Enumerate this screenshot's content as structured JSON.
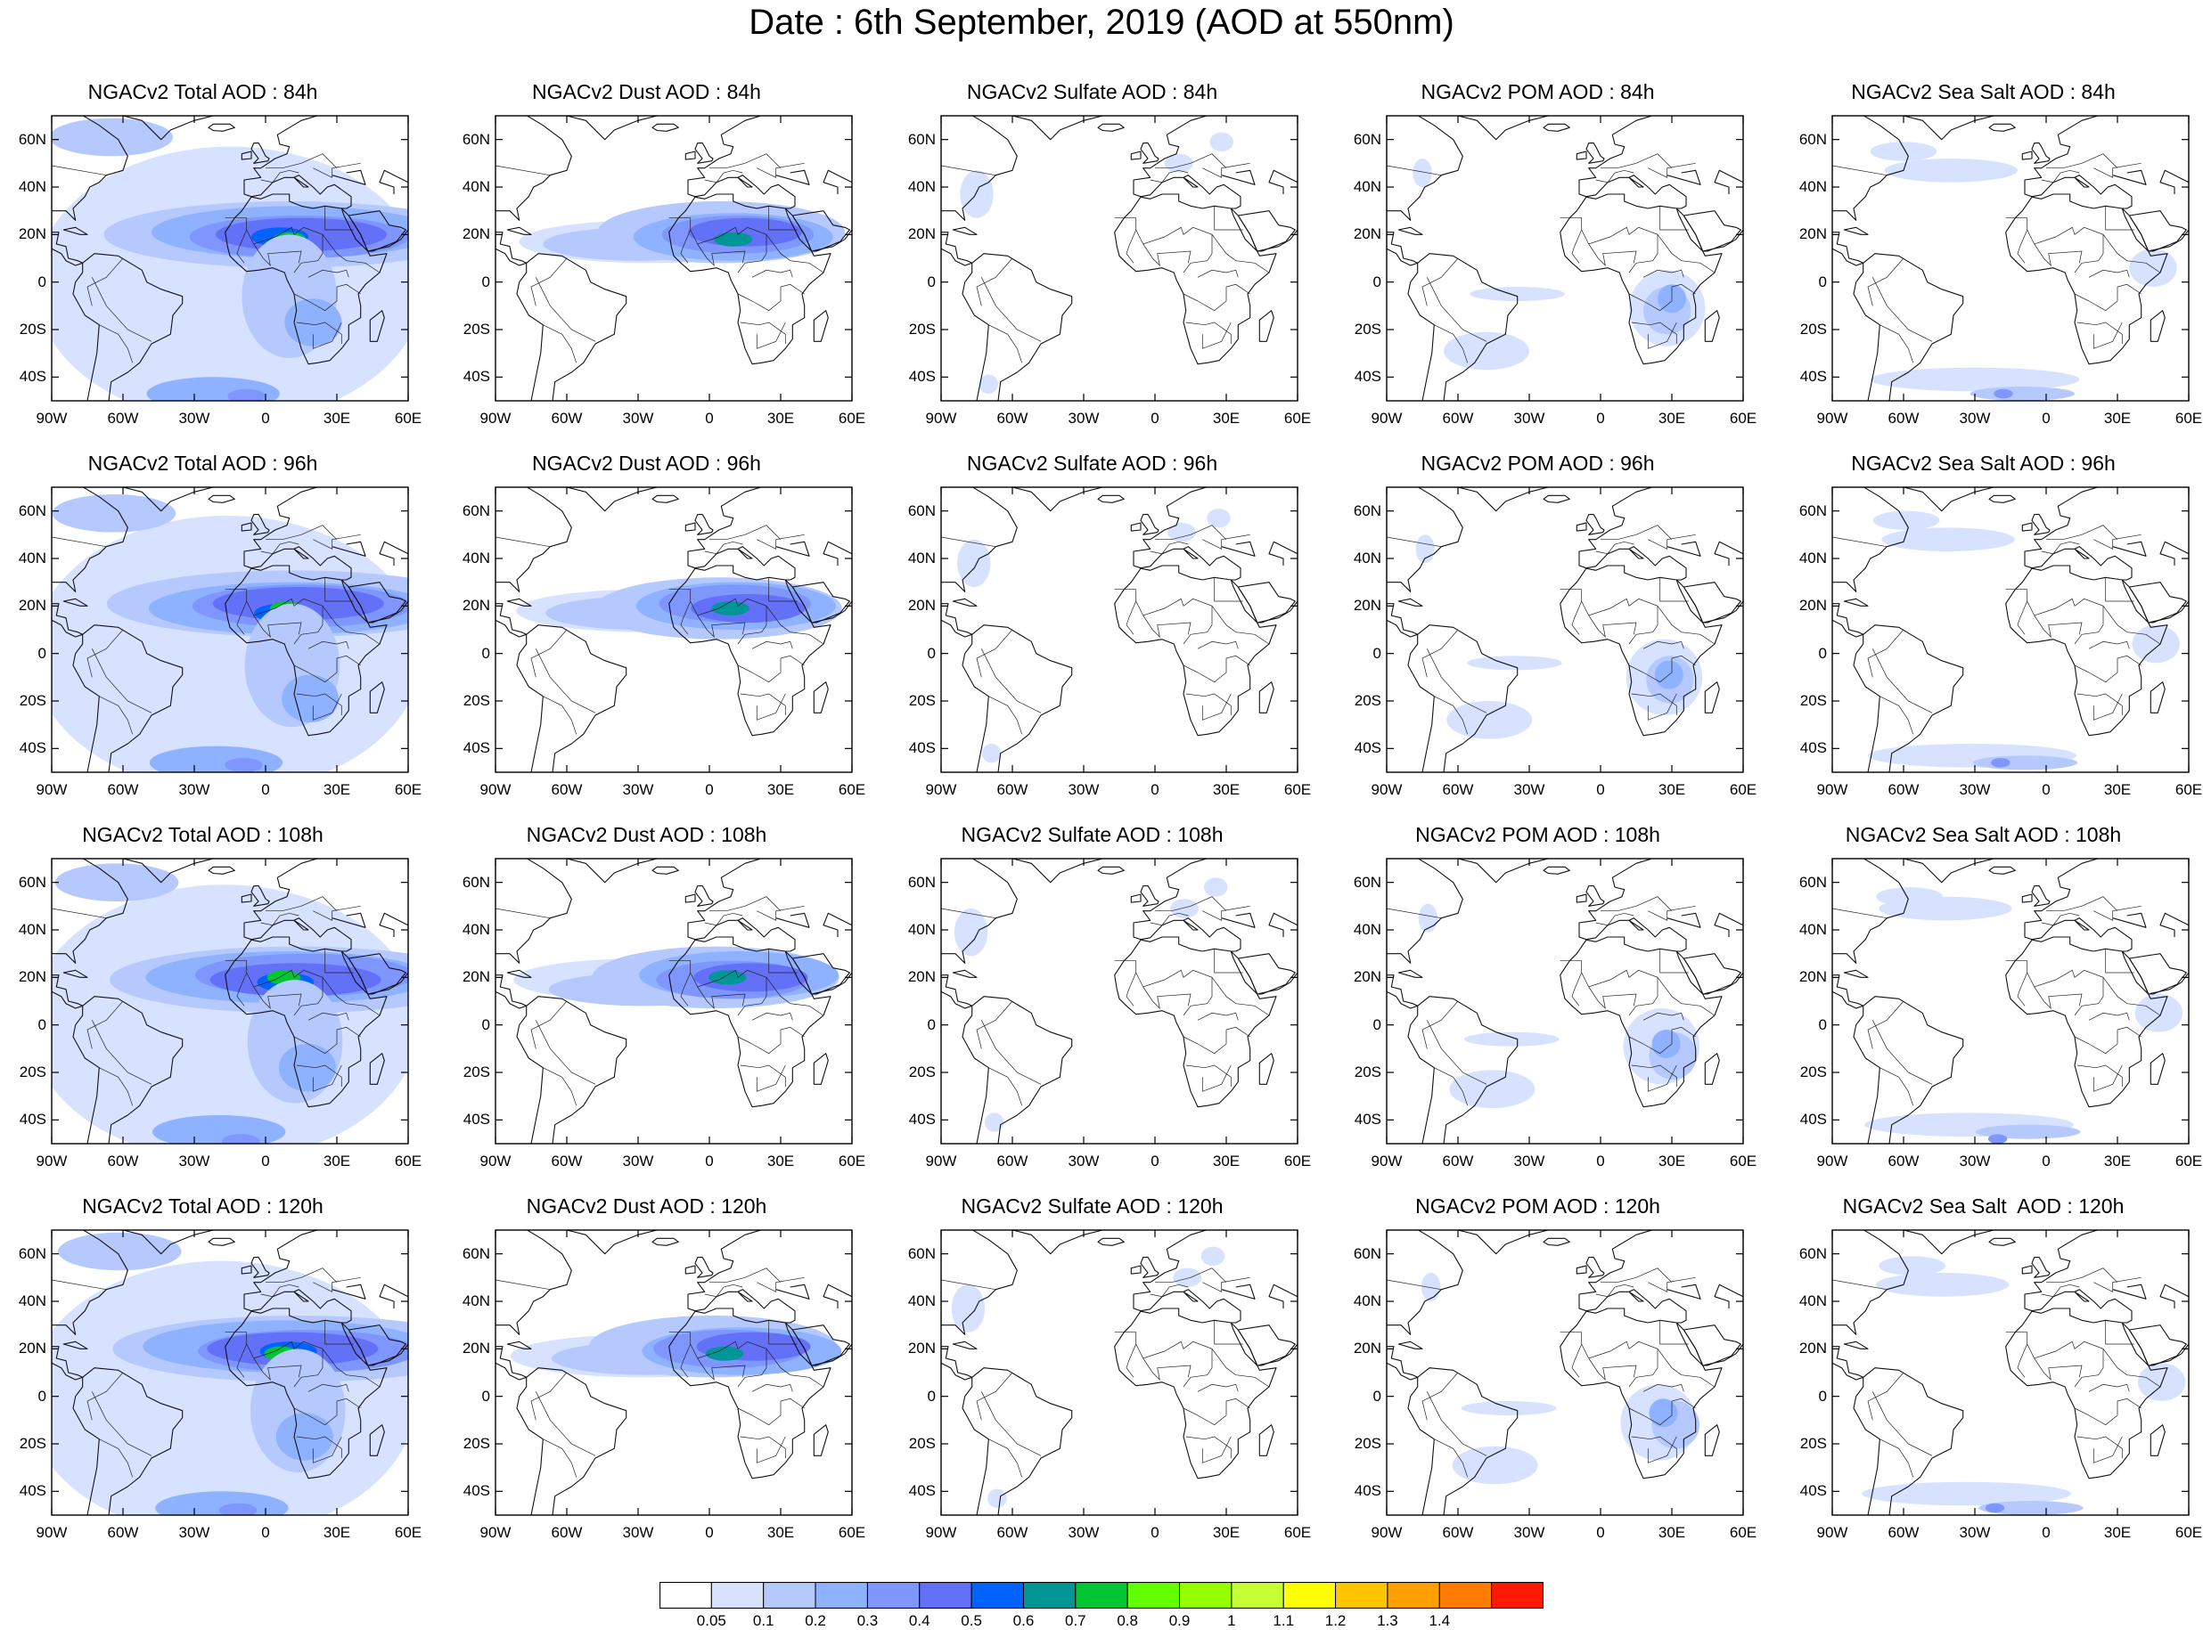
{
  "title": "Date : 6th September, 2019 (AOD at 550nm)",
  "panels": [
    [
      {
        "title": "NGACv2 Total AOD : 84h",
        "species": "total"
      },
      {
        "title": "NGACv2 Dust AOD : 84h",
        "species": "dust"
      },
      {
        "title": "NGACv2 Sulfate AOD : 84h",
        "species": "sulfate"
      },
      {
        "title": "NGACv2 POM AOD : 84h",
        "species": "pom"
      },
      {
        "title": "NGACv2 Sea Salt AOD : 84h",
        "species": "seasalt"
      }
    ],
    [
      {
        "title": "NGACv2 Total AOD : 96h",
        "species": "total"
      },
      {
        "title": "NGACv2 Dust AOD : 96h",
        "species": "dust"
      },
      {
        "title": "NGACv2 Sulfate AOD : 96h",
        "species": "sulfate"
      },
      {
        "title": "NGACv2 POM AOD : 96h",
        "species": "pom"
      },
      {
        "title": "NGACv2 Sea Salt AOD : 96h",
        "species": "seasalt"
      }
    ],
    [
      {
        "title": "NGACv2 Total AOD : 108h",
        "species": "total"
      },
      {
        "title": "NGACv2 Dust AOD : 108h",
        "species": "dust"
      },
      {
        "title": "NGACv2 Sulfate AOD : 108h",
        "species": "sulfate"
      },
      {
        "title": "NGACv2 POM AOD : 108h",
        "species": "pom"
      },
      {
        "title": "NGACv2 Sea Salt AOD : 108h",
        "species": "seasalt"
      }
    ],
    [
      {
        "title": "NGACv2 Total AOD : 120h",
        "species": "total"
      },
      {
        "title": "NGACv2 Dust AOD : 120h",
        "species": "dust"
      },
      {
        "title": "NGACv2 Sulfate AOD : 120h",
        "species": "sulfate"
      },
      {
        "title": "NGACv2 POM AOD : 120h",
        "species": "pom"
      },
      {
        "title": "NGACv2 Sea Salt  AOD : 120h",
        "species": "seasalt"
      }
    ]
  ],
  "lat_ticks": [
    {
      "value": 60,
      "label": "60N"
    },
    {
      "value": 40,
      "label": "40N"
    },
    {
      "value": 20,
      "label": "20N"
    },
    {
      "value": 0,
      "label": "0"
    },
    {
      "value": -20,
      "label": "20S"
    },
    {
      "value": -40,
      "label": "40S"
    }
  ],
  "lon_ticks": [
    {
      "value": -90,
      "label": "90W"
    },
    {
      "value": -60,
      "label": "60W"
    },
    {
      "value": -30,
      "label": "30W"
    },
    {
      "value": 0,
      "label": "0"
    },
    {
      "value": 30,
      "label": "30E"
    },
    {
      "value": 60,
      "label": "60E"
    }
  ],
  "map_extent": {
    "lon": [
      -90,
      60
    ],
    "lat": [
      -50,
      70
    ]
  },
  "colorbar": {
    "colors": [
      "#ffffff",
      "#d6e2ff",
      "#b5c9ff",
      "#8eb2ff",
      "#7f96ff",
      "#6370f8",
      "#0063ff",
      "#009696",
      "#00c633",
      "#63ff00",
      "#96ff00",
      "#c6ff33",
      "#ffff00",
      "#ffc600",
      "#ffa000",
      "#ff7c00",
      "#ff1900"
    ],
    "labels": [
      "0.05",
      "0.1",
      "0.2",
      "0.3",
      "0.4",
      "0.5",
      "0.6",
      "0.7",
      "0.8",
      "0.9",
      "1",
      "1.1",
      "1.2",
      "1.3",
      "1.4"
    ]
  }
}
